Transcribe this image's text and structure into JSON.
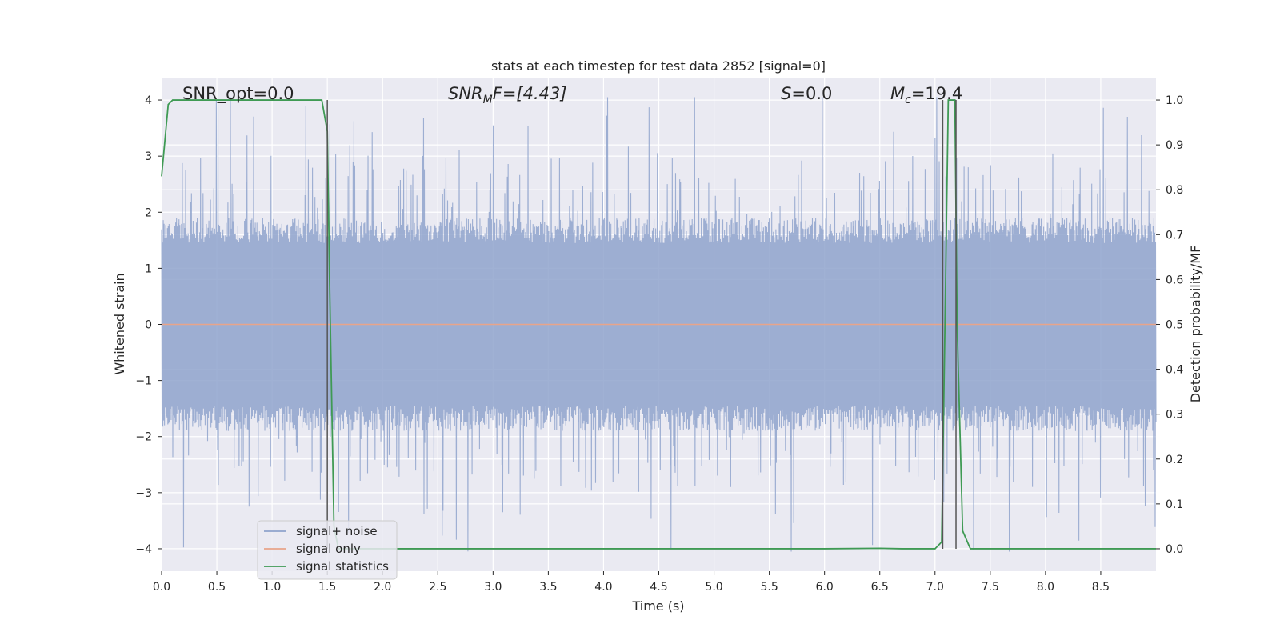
{
  "chart_data": {
    "type": "line",
    "title": "stats at each timestep for test data 2852 [signal=0]",
    "xlabel": "Time (s)",
    "ylabel": "Whitened strain",
    "y2label": "Detection probability/MF",
    "xlim": [
      0.0,
      9.0
    ],
    "ylim": [
      -4.4,
      4.4
    ],
    "y2lim": [
      -0.05,
      1.05
    ],
    "xticks": [
      "0.0",
      "0.5",
      "1.0",
      "1.5",
      "2.0",
      "2.5",
      "3.0",
      "3.5",
      "4.0",
      "4.5",
      "5.0",
      "5.5",
      "6.0",
      "6.5",
      "7.0",
      "7.5",
      "8.0",
      "8.5"
    ],
    "yticks": [
      "4",
      "3",
      "2",
      "1",
      "0",
      "−1",
      "−2",
      "−3",
      "−4"
    ],
    "y2ticks": [
      "1.0",
      "0.9",
      "0.8",
      "0.7",
      "0.6",
      "0.5",
      "0.4",
      "0.3",
      "0.2",
      "0.1",
      "0.0"
    ],
    "grid": true,
    "legend_placement": "lower-left",
    "annotations": [
      {
        "id": "snr-opt",
        "text": "SNR_opt=0.0"
      },
      {
        "id": "snr-mf",
        "text": "SNR",
        "sub": "M",
        "rest": "F=[4.43]"
      },
      {
        "id": "s-value",
        "text": "S",
        "rest": "=0.0"
      },
      {
        "id": "mc-value",
        "text": "M",
        "sub": "c",
        "rest": "=19.4"
      }
    ],
    "vertical_lines_x": [
      1.5,
      7.07,
      7.19
    ],
    "series": [
      {
        "name": "signal+ noise",
        "color": "#8fa3cc",
        "axis": "left",
        "description_amplitude": "noise band, typical |y| about 1.6, spikes up to 4"
      },
      {
        "name": "signal only",
        "color": "#e8a48a",
        "axis": "left",
        "x": [
          0.0,
          9.0
        ],
        "y": [
          0.0,
          0.0
        ]
      },
      {
        "name": "signal statistics",
        "color": "#3f9a54",
        "axis": "right",
        "x": [
          0.0,
          0.06,
          0.1,
          0.15,
          0.5,
          1.0,
          1.4,
          1.45,
          1.5,
          1.52,
          1.56,
          1.6,
          2.0,
          3.0,
          4.0,
          5.0,
          6.0,
          6.5,
          6.7,
          7.0,
          7.06,
          7.09,
          7.12,
          7.13,
          7.18,
          7.2,
          7.25,
          7.32,
          7.5,
          8.0,
          8.5,
          9.0
        ],
        "y": [
          0.83,
          0.99,
          1.0,
          1.0,
          1.0,
          1.0,
          1.0,
          1.0,
          0.93,
          0.6,
          0.05,
          0.0,
          0.0,
          0.0,
          0.0,
          0.0,
          0.0,
          0.001,
          0.0,
          0.0,
          0.015,
          0.5,
          1.0,
          1.0,
          1.0,
          0.5,
          0.04,
          0.0,
          0.0,
          0.0,
          0.0,
          0.0
        ]
      }
    ]
  },
  "legend": {
    "items": [
      {
        "label": "signal+ noise",
        "color": "#8fa3cc"
      },
      {
        "label": "signal only",
        "color": "#e8a48a"
      },
      {
        "label": "signal statistics",
        "color": "#3f9a54"
      }
    ]
  },
  "colors": {
    "plot_background": "#eaeaf2",
    "grid": "#ffffff",
    "vline": "#555555"
  }
}
